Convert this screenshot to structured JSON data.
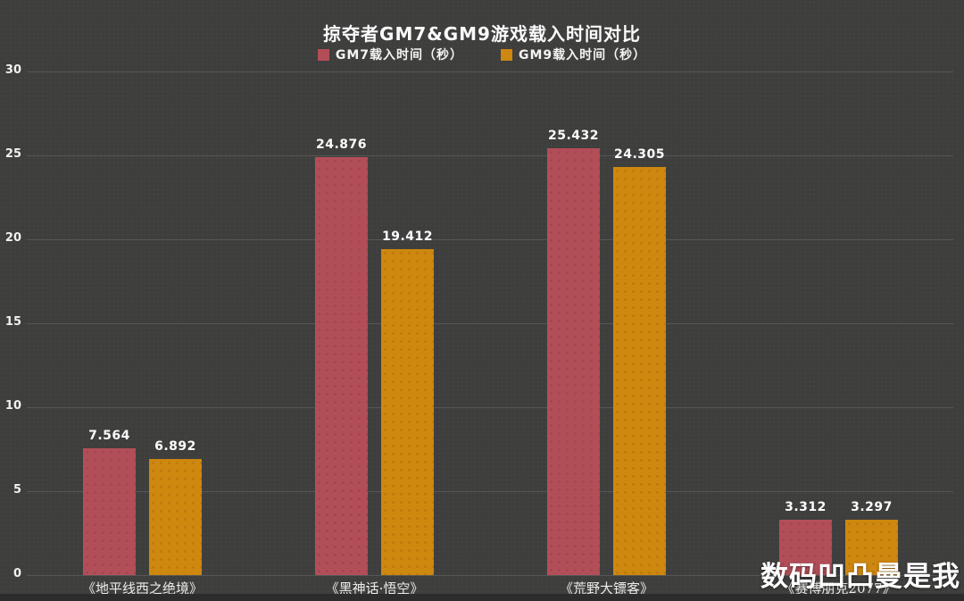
{
  "title": "掠夺者GM7&GM9游戏载入时间对比",
  "watermark": "数码凹凸曼是我",
  "colors": {
    "background": "#3e3e3d",
    "footer_strip": "#2c2c2c",
    "gridline": "#565656",
    "gm7_bar": "#b24e58",
    "gm9_bar": "#ce870f",
    "text": "#f5f4f2"
  },
  "chart_data": {
    "type": "bar",
    "title": "掠夺者GM7&GM9游戏载入时间对比",
    "categories": [
      "《地平线西之绝境》",
      "《黑神话·悟空》",
      "《荒野大镖客》",
      "《赛博朋克2077》"
    ],
    "series": [
      {
        "name": "GM7载入时间（秒）",
        "color": "#b24e58",
        "values": [
          7.564,
          24.876,
          25.432,
          3.312
        ]
      },
      {
        "name": "GM9载入时间（秒）",
        "color": "#ce870f",
        "values": [
          6.892,
          19.412,
          24.305,
          3.297
        ]
      }
    ],
    "xlabel": "",
    "ylabel": "",
    "ylim": [
      0,
      30
    ],
    "yticks": [
      0,
      5,
      10,
      15,
      20,
      25,
      30
    ],
    "grid": true,
    "legend_position": "top",
    "value_labels": true,
    "value_decimals": 3
  }
}
